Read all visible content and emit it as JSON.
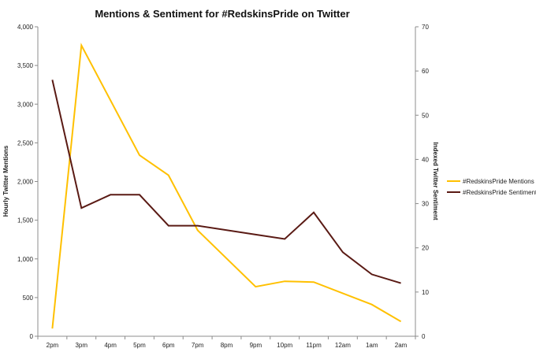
{
  "chart_data": {
    "type": "line",
    "title": "Mentions & Sentiment for #RedskinsPride on Twitter",
    "xlabel": "",
    "ylabel": "Hourly Twitter Mentions",
    "y2label": "Indexed Twitter Sentiment",
    "categories": [
      "2pm",
      "3pm",
      "4pm",
      "5pm",
      "6pm",
      "7pm",
      "8pm",
      "9pm",
      "10pm",
      "11pm",
      "12am",
      "1am",
      "2am"
    ],
    "ylim": [
      0,
      4000
    ],
    "y_ticks": [
      "0",
      "500",
      "1,000",
      "1,500",
      "2,000",
      "2,500",
      "3,000",
      "3,500",
      "4,000"
    ],
    "y2lim": [
      0,
      70
    ],
    "y2_ticks": [
      "0",
      "10",
      "20",
      "30",
      "40",
      "50",
      "60",
      "70"
    ],
    "grid": false,
    "legend_position": "right",
    "series": [
      {
        "name": "#RedskinsPride Mentions",
        "axis": "left",
        "color": "#FFC000",
        "values": [
          100,
          3760,
          null,
          2340,
          2080,
          1370,
          null,
          640,
          710,
          700,
          null,
          410,
          190
        ]
      },
      {
        "name": "#RedskinsPride Sentiment",
        "axis": "right",
        "color": "#5A1A14",
        "values": [
          58,
          29,
          32,
          32,
          25,
          25,
          null,
          23,
          22,
          28,
          19,
          14,
          12
        ]
      }
    ]
  }
}
